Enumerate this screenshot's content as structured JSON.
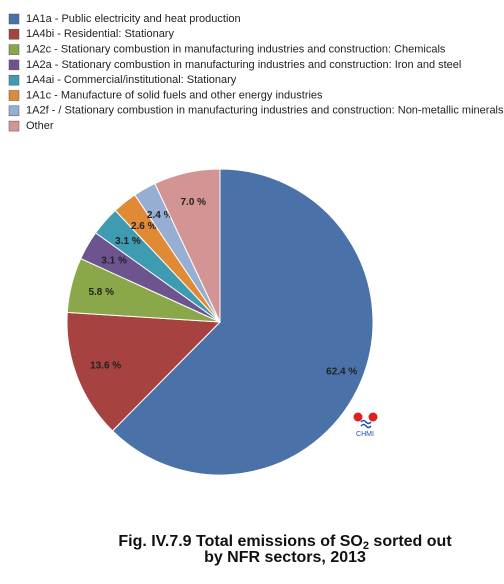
{
  "chart_data": {
    "type": "pie",
    "title": [
      "Fig. IV.7.9  Total emissions of SO",
      "2",
      " sorted out",
      "by NFR sectors, 2013"
    ],
    "categories": [
      "1A1a - Public electricity and heat production",
      "1A4bi - Residential: Stationary",
      "1A2c - Stationary combustion in manufacturing industries and construction: Chemicals",
      "1A2a - Stationary combustion in manufacturing industries and construction: Iron and steel",
      "1A4ai -  Commercial/institutional: Stationary",
      "1A1c - Manufacture of solid fuels and other energy industries",
      "1A2f -  / Stationary combustion in manufacturing industries and construction: Non-metallic minerals",
      "Other"
    ],
    "values": [
      62.4,
      13.6,
      5.8,
      3.1,
      3.1,
      2.6,
      2.4,
      7.0
    ],
    "value_labels": [
      "62.4 %",
      "13.6 %",
      "5.8 %",
      "3.1 %",
      "3.1 %",
      "2.6 %",
      "2.4 %",
      "7.0 %"
    ],
    "colors": [
      "#4a72a8",
      "#a6423f",
      "#8aa84a",
      "#6e548f",
      "#3e9bb0",
      "#e08a35",
      "#97aed3",
      "#d39593"
    ],
    "logo": "CHMI"
  }
}
